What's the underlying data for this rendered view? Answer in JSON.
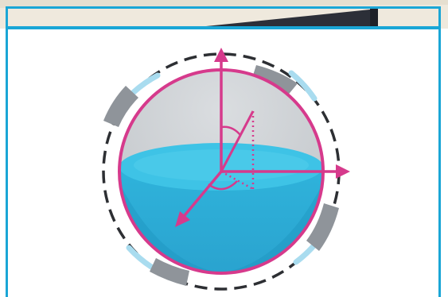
{
  "colors": {
    "frame": "#1aa6d6",
    "sphere_outline": "#d63a8c",
    "axis": "#d63a8c",
    "water_top": "#38bfe0",
    "water_body": "#1c9fc9",
    "upper_sphere": "#cfd3d6",
    "orbit_dash": "#2d2f33",
    "sensor_block": "#8f949a",
    "sensor_glow": "#a9dcef"
  },
  "icons": {
    "sphere": "sphere-icon",
    "axes": "axis-arrows-icon",
    "sensors": "sensor-segment-icon"
  }
}
